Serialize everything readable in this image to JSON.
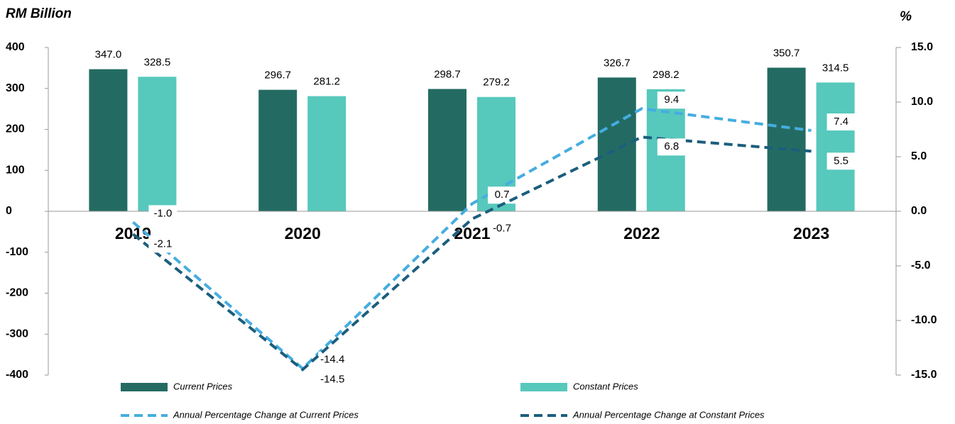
{
  "chart_data": {
    "type": "bar",
    "y_label": "RM Billion",
    "y2_label": "%",
    "categories": [
      "2019",
      "2020",
      "2021",
      "2022",
      "2023"
    ],
    "ylim": [
      -400,
      400
    ],
    "yticks": [
      -400,
      -300,
      -200,
      -100,
      0,
      100,
      200,
      300,
      400
    ],
    "y2lim": [
      -15,
      15
    ],
    "y2ticks": [
      {
        "value": -15,
        "label": "-15.0"
      },
      {
        "value": -10,
        "label": "-10.0"
      },
      {
        "value": -5,
        "label": "-5.0"
      },
      {
        "value": 0,
        "label": "0.0"
      },
      {
        "value": 5,
        "label": "5.0"
      },
      {
        "value": 10,
        "label": "10.0"
      },
      {
        "value": 15,
        "label": "15.0"
      }
    ],
    "legend": "bottom",
    "series": [
      {
        "name": "Current Prices",
        "type": "bar",
        "color": "#236b62",
        "values": [
          347.0,
          296.7,
          298.7,
          326.7,
          350.7
        ],
        "value_labels": [
          "347.0",
          "296.7",
          "298.7",
          "326.7",
          "350.7"
        ]
      },
      {
        "name": "Constant Prices",
        "type": "bar",
        "color": "#57c8bc",
        "values": [
          328.5,
          281.2,
          279.2,
          298.2,
          314.5
        ],
        "value_labels": [
          "328.5",
          "281.2",
          "279.2",
          "298.2",
          "314.5"
        ]
      },
      {
        "name": "Annual Percentage Change at Current Prices",
        "type": "line",
        "axis": "y2",
        "color": "#45ade0",
        "values": [
          -1.0,
          -14.4,
          0.7,
          9.4,
          7.4
        ],
        "value_labels": [
          "-1.0",
          "-14.4",
          "0.7",
          "9.4",
          "7.4"
        ]
      },
      {
        "name": "Annual Percentage Change at Constant Prices",
        "type": "line",
        "axis": "y2",
        "color": "#1b5e7d",
        "values": [
          -2.1,
          -14.5,
          -0.7,
          6.8,
          5.5
        ],
        "value_labels": [
          "-2.1",
          "-14.5",
          "-0.7",
          "6.8",
          "5.5"
        ]
      }
    ]
  }
}
